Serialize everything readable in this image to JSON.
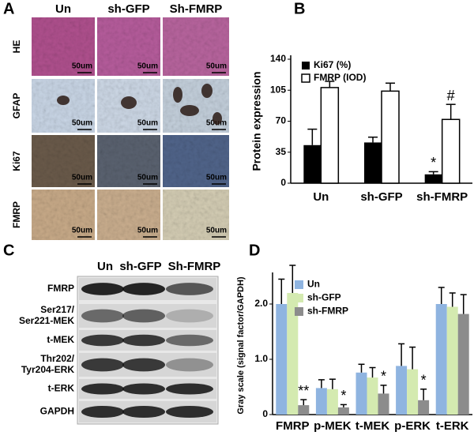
{
  "panel_a": {
    "label": "A",
    "columns": [
      "Un",
      "sh-GFP",
      "Sh-FMRP"
    ],
    "rows": [
      "HE",
      "GFAP",
      "Ki67",
      "FMRP"
    ],
    "scale_bar": "50um"
  },
  "panel_c": {
    "label": "C",
    "columns": [
      "Un",
      "sh-GFP",
      "Sh-FMRP"
    ],
    "rows": [
      [
        "FMRP"
      ],
      [
        "Ser217/",
        "Ser221-MEK"
      ],
      [
        "t-MEK"
      ],
      [
        "Thr202/",
        "Tyr204-ERK"
      ],
      [
        "t-ERK"
      ],
      [
        "GAPDH"
      ]
    ]
  },
  "chart_data": [
    {
      "type": "bar",
      "label": "B",
      "ylabel": "Protein expression",
      "categories": [
        "Un",
        "sh-GFP",
        "sh-FMRP"
      ],
      "series": [
        {
          "name": "Ki67 (%)",
          "color": "#000000",
          "values": [
            43,
            46,
            10
          ],
          "errors": [
            18,
            6,
            3
          ],
          "annotations": [
            null,
            null,
            "*"
          ]
        },
        {
          "name": "FMRP (IOD)",
          "color": "#ffffff",
          "values": [
            108,
            104,
            72
          ],
          "errors": [
            7,
            9,
            17
          ],
          "annotations": [
            null,
            null,
            "#"
          ]
        }
      ],
      "ylim": [
        0,
        140
      ],
      "yticks": [
        0,
        35,
        70,
        105,
        140
      ],
      "grid": false
    },
    {
      "type": "bar",
      "label": "D",
      "ylabel": "Gray scale (signal factor/GAPDH)",
      "categories": [
        "FMRP",
        "p-MEK",
        "t-MEK",
        "p-ERK",
        "t-ERK"
      ],
      "series": [
        {
          "name": "Un",
          "color": "#8fb4e0",
          "values": [
            2.0,
            0.48,
            0.76,
            0.88,
            2.0
          ],
          "errors": [
            0.45,
            0.15,
            0.15,
            0.4,
            0.3
          ],
          "annotations": [
            null,
            null,
            null,
            null,
            null
          ]
        },
        {
          "name": "sh-GFP",
          "color": "#d4eab0",
          "values": [
            2.2,
            0.46,
            0.67,
            0.82,
            1.95
          ],
          "errors": [
            0.5,
            0.18,
            0.18,
            0.4,
            0.25
          ],
          "annotations": [
            null,
            null,
            null,
            null,
            null
          ]
        },
        {
          "name": "sh-FMRP",
          "color": "#8c8c8c",
          "values": [
            0.17,
            0.13,
            0.38,
            0.26,
            1.82
          ],
          "errors": [
            0.1,
            0.05,
            0.15,
            0.2,
            0.35
          ],
          "annotations": [
            "**",
            "*",
            "*",
            "*",
            null
          ]
        }
      ],
      "ylim": [
        0,
        2.5
      ],
      "yticks": [
        0,
        {
          "value": 1,
          "label": "1.0"
        },
        {
          "value": 2,
          "label": "2.0"
        }
      ],
      "grid": false
    }
  ]
}
